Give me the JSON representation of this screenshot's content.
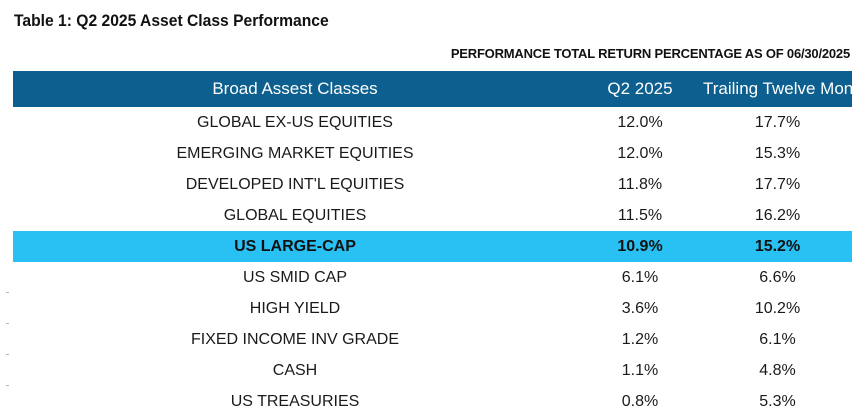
{
  "title": "Table 1: Q2 2025 Asset Class Performance",
  "subtitle": "PERFORMANCE TOTAL RETURN PERCENTAGE AS OF 06/30/2025",
  "headers": [
    "Broad Assest Classes",
    "Q2 2025",
    "Trailing Twelve Months"
  ],
  "rows": [
    {
      "name": "GLOBAL EX-US EQUITIES",
      "q2": "12.0%",
      "ttm": "17.7%",
      "highlight": false
    },
    {
      "name": "EMERGING MARKET EQUITIES",
      "q2": "12.0%",
      "ttm": "15.3%",
      "highlight": false
    },
    {
      "name": "DEVELOPED INT'L EQUITIES",
      "q2": "11.8%",
      "ttm": "17.7%",
      "highlight": false
    },
    {
      "name": "GLOBAL EQUITIES",
      "q2": "11.5%",
      "ttm": "16.2%",
      "highlight": false
    },
    {
      "name": "US LARGE-CAP",
      "q2": "10.9%",
      "ttm": "15.2%",
      "highlight": true
    },
    {
      "name": "US SMID CAP",
      "q2": "6.1%",
      "ttm": "6.6%",
      "highlight": false
    },
    {
      "name": "HIGH YIELD",
      "q2": "3.6%",
      "ttm": "10.2%",
      "highlight": false
    },
    {
      "name": "FIXED INCOME INV GRADE",
      "q2": "1.2%",
      "ttm": "6.1%",
      "highlight": false
    },
    {
      "name": "CASH",
      "q2": "1.1%",
      "ttm": "4.8%",
      "highlight": false
    },
    {
      "name": "US TREASURIES",
      "q2": "0.8%",
      "ttm": "5.3%",
      "highlight": false
    }
  ],
  "colors": {
    "header_bg": "#0c5f8e",
    "highlight_bg": "#29c0f3"
  }
}
